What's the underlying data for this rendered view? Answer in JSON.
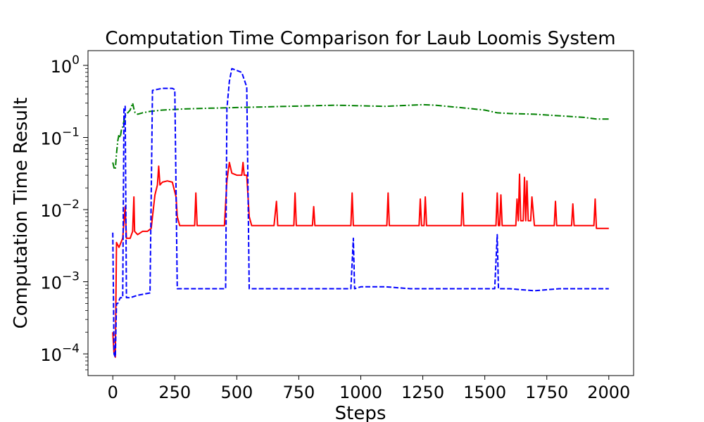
{
  "chart_data": {
    "type": "line",
    "title": "Computation Time Comparison for Laub Loomis System",
    "xlabel": "Steps",
    "ylabel": "Computation Time Result",
    "xlim": [
      -100,
      2100
    ],
    "ylim": [
      5e-05,
      1.6
    ],
    "yscale": "log",
    "grid": false,
    "legend": "none",
    "x_ticks": [
      0,
      250,
      500,
      750,
      1000,
      1250,
      1500,
      1750,
      2000
    ],
    "x_tick_labels": [
      "0",
      "250",
      "500",
      "750",
      "1000",
      "1250",
      "1500",
      "1750",
      "2000"
    ],
    "y_ticks": [
      {
        "value": 0.0001,
        "base": "10",
        "exp": "−4"
      },
      {
        "value": 0.001,
        "base": "10",
        "exp": "−3"
      },
      {
        "value": 0.01,
        "base": "10",
        "exp": "−2"
      },
      {
        "value": 0.1,
        "base": "10",
        "exp": "−1"
      },
      {
        "value": 1,
        "base": "10",
        "exp": "0"
      }
    ],
    "series": [
      {
        "color": "#008000",
        "style": "dashdot",
        "points": [
          [
            0,
            0.045
          ],
          [
            5,
            0.038
          ],
          [
            10,
            0.036
          ],
          [
            15,
            0.06
          ],
          [
            20,
            0.09
          ],
          [
            25,
            0.11
          ],
          [
            30,
            0.1
          ],
          [
            35,
            0.13
          ],
          [
            40,
            0.14
          ],
          [
            45,
            0.17
          ],
          [
            50,
            0.2
          ],
          [
            60,
            0.22
          ],
          [
            70,
            0.24
          ],
          [
            80,
            0.3
          ],
          [
            85,
            0.25
          ],
          [
            90,
            0.22
          ],
          [
            100,
            0.21
          ],
          [
            120,
            0.22
          ],
          [
            150,
            0.23
          ],
          [
            200,
            0.24
          ],
          [
            250,
            0.245
          ],
          [
            300,
            0.25
          ],
          [
            400,
            0.255
          ],
          [
            500,
            0.26
          ],
          [
            600,
            0.265
          ],
          [
            700,
            0.27
          ],
          [
            800,
            0.275
          ],
          [
            900,
            0.28
          ],
          [
            1000,
            0.275
          ],
          [
            1100,
            0.27
          ],
          [
            1200,
            0.28
          ],
          [
            1250,
            0.285
          ],
          [
            1300,
            0.28
          ],
          [
            1400,
            0.26
          ],
          [
            1500,
            0.24
          ],
          [
            1550,
            0.22
          ],
          [
            1600,
            0.215
          ],
          [
            1700,
            0.21
          ],
          [
            1800,
            0.2
          ],
          [
            1900,
            0.19
          ],
          [
            1950,
            0.18
          ],
          [
            2000,
            0.18
          ]
        ]
      },
      {
        "color": "#ff0000",
        "style": "solid",
        "points": [
          [
            0,
            0.0002
          ],
          [
            5,
            0.0001
          ],
          [
            10,
            9e-05
          ],
          [
            12,
            0.0004
          ],
          [
            15,
            0.0035
          ],
          [
            25,
            0.003
          ],
          [
            40,
            0.004
          ],
          [
            50,
            0.011
          ],
          [
            55,
            0.004
          ],
          [
            70,
            0.004
          ],
          [
            80,
            0.005
          ],
          [
            85,
            0.015
          ],
          [
            88,
            0.005
          ],
          [
            100,
            0.0045
          ],
          [
            120,
            0.005
          ],
          [
            140,
            0.005
          ],
          [
            155,
            0.0055
          ],
          [
            160,
            0.008
          ],
          [
            170,
            0.016
          ],
          [
            180,
            0.022
          ],
          [
            185,
            0.04
          ],
          [
            190,
            0.022
          ],
          [
            200,
            0.024
          ],
          [
            220,
            0.025
          ],
          [
            240,
            0.024
          ],
          [
            255,
            0.015
          ],
          [
            260,
            0.008
          ],
          [
            270,
            0.006
          ],
          [
            300,
            0.006
          ],
          [
            330,
            0.006
          ],
          [
            335,
            0.017
          ],
          [
            340,
            0.006
          ],
          [
            400,
            0.006
          ],
          [
            450,
            0.006
          ],
          [
            460,
            0.025
          ],
          [
            470,
            0.045
          ],
          [
            480,
            0.032
          ],
          [
            500,
            0.03
          ],
          [
            520,
            0.03
          ],
          [
            525,
            0.045
          ],
          [
            530,
            0.03
          ],
          [
            540,
            0.03
          ],
          [
            550,
            0.008
          ],
          [
            560,
            0.006
          ],
          [
            650,
            0.006
          ],
          [
            660,
            0.013
          ],
          [
            665,
            0.006
          ],
          [
            730,
            0.006
          ],
          [
            735,
            0.017
          ],
          [
            740,
            0.006
          ],
          [
            805,
            0.006
          ],
          [
            810,
            0.011
          ],
          [
            815,
            0.006
          ],
          [
            960,
            0.006
          ],
          [
            965,
            0.017
          ],
          [
            970,
            0.006
          ],
          [
            1105,
            0.006
          ],
          [
            1110,
            0.017
          ],
          [
            1115,
            0.006
          ],
          [
            1235,
            0.006
          ],
          [
            1240,
            0.014
          ],
          [
            1245,
            0.006
          ],
          [
            1255,
            0.006
          ],
          [
            1260,
            0.015
          ],
          [
            1265,
            0.006
          ],
          [
            1405,
            0.006
          ],
          [
            1410,
            0.017
          ],
          [
            1415,
            0.006
          ],
          [
            1545,
            0.006
          ],
          [
            1550,
            0.017
          ],
          [
            1555,
            0.006
          ],
          [
            1560,
            0.006
          ],
          [
            1565,
            0.016
          ],
          [
            1570,
            0.006
          ],
          [
            1625,
            0.006
          ],
          [
            1630,
            0.014
          ],
          [
            1635,
            0.007
          ],
          [
            1640,
            0.031
          ],
          [
            1645,
            0.007
          ],
          [
            1655,
            0.007
          ],
          [
            1660,
            0.028
          ],
          [
            1665,
            0.007
          ],
          [
            1670,
            0.025
          ],
          [
            1675,
            0.007
          ],
          [
            1685,
            0.007
          ],
          [
            1690,
            0.015
          ],
          [
            1700,
            0.006
          ],
          [
            1780,
            0.006
          ],
          [
            1785,
            0.013
          ],
          [
            1790,
            0.006
          ],
          [
            1850,
            0.006
          ],
          [
            1855,
            0.012
          ],
          [
            1860,
            0.006
          ],
          [
            1940,
            0.006
          ],
          [
            1945,
            0.014
          ],
          [
            1950,
            0.0055
          ],
          [
            2000,
            0.0055
          ]
        ]
      },
      {
        "color": "#0000ff",
        "style": "dashed",
        "points": [
          [
            0,
            0.0048
          ],
          [
            5,
            0.0001
          ],
          [
            10,
            9e-05
          ],
          [
            15,
            0.0005
          ],
          [
            20,
            0.0005
          ],
          [
            30,
            0.0006
          ],
          [
            40,
            0.0006
          ],
          [
            45,
            0.25
          ],
          [
            50,
            0.27
          ],
          [
            55,
            0.0006
          ],
          [
            70,
            0.0006
          ],
          [
            100,
            0.00065
          ],
          [
            150,
            0.0007
          ],
          [
            160,
            0.45
          ],
          [
            200,
            0.48
          ],
          [
            240,
            0.48
          ],
          [
            250,
            0.46
          ],
          [
            260,
            0.0008
          ],
          [
            300,
            0.0008
          ],
          [
            400,
            0.0008
          ],
          [
            455,
            0.0008
          ],
          [
            460,
            0.25
          ],
          [
            470,
            0.6
          ],
          [
            480,
            0.9
          ],
          [
            500,
            0.85
          ],
          [
            520,
            0.8
          ],
          [
            540,
            0.5
          ],
          [
            550,
            0.0008
          ],
          [
            600,
            0.0008
          ],
          [
            700,
            0.0008
          ],
          [
            800,
            0.0008
          ],
          [
            960,
            0.0008
          ],
          [
            970,
            0.004
          ],
          [
            975,
            0.0008
          ],
          [
            1000,
            0.00085
          ],
          [
            1100,
            0.00085
          ],
          [
            1200,
            0.0008
          ],
          [
            1300,
            0.0008
          ],
          [
            1400,
            0.0008
          ],
          [
            1540,
            0.0008
          ],
          [
            1550,
            0.0045
          ],
          [
            1555,
            0.0008
          ],
          [
            1600,
            0.0008
          ],
          [
            1700,
            0.00075
          ],
          [
            1800,
            0.0008
          ],
          [
            1900,
            0.0008
          ],
          [
            2000,
            0.0008
          ]
        ]
      }
    ]
  }
}
